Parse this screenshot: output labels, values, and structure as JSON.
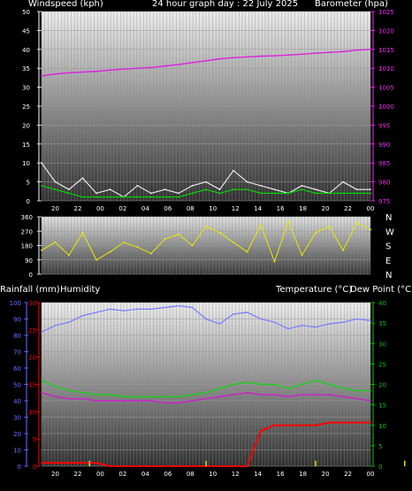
{
  "header": {
    "left": "Windspeed (kph)",
    "center": "24 hour graph day : 22 July 2025",
    "right": "Barometer (hpa)"
  },
  "lower_header": {
    "rain": "Rainfall (mm)",
    "humidity": "Humidity",
    "temp": "Temperature (°C)",
    "dew": "Dew Point (°C)"
  },
  "compass": [
    "N",
    "W",
    "S",
    "E",
    "N"
  ],
  "time_labels": [
    "20",
    "22",
    "00",
    "02",
    "04",
    "06",
    "08",
    "10",
    "12",
    "14",
    "16",
    "18",
    "20",
    "22",
    "00"
  ],
  "colors": {
    "wind_speed": "#f2f2f2",
    "wind_avg": "#00dd00",
    "barometer": "#dd22dd",
    "direction": "#e8e800",
    "humidity": "#7f7fff",
    "temperature": "#22cc22",
    "dewpoint": "#cc22cc",
    "rainfall": "#ff0000",
    "rain_rate": "#e0e000",
    "axis_red": "#ff0000",
    "axis_blue": "#6f6fff",
    "axis_green": "#00cc00",
    "axis_magenta": "#ff22ff"
  },
  "chart_data": [
    {
      "type": "line",
      "title": "24 hour graph day : 22 July 2025",
      "xlabel": "",
      "ylabel": "Windspeed (kph)",
      "y2label": "Barometer (hpa)",
      "x": [
        19,
        20,
        21,
        22,
        23,
        24,
        25,
        26,
        27,
        28,
        29,
        30,
        31,
        32,
        33,
        34,
        35,
        36,
        37,
        38,
        39,
        40,
        41,
        42,
        43
      ],
      "ylim": [
        0,
        50
      ],
      "y2lim": [
        975,
        1025
      ],
      "grid": true,
      "series": [
        {
          "name": "Windspeed (kph)",
          "axis": "left",
          "values": [
            10,
            5,
            3,
            6,
            2,
            3,
            1,
            4,
            2,
            3,
            2,
            4,
            5,
            3,
            8,
            5,
            4,
            3,
            2,
            4,
            3,
            2,
            5,
            3,
            3
          ]
        },
        {
          "name": "Average windspeed",
          "axis": "left",
          "values": [
            4,
            3,
            2,
            1,
            1,
            1,
            1,
            1,
            1,
            1,
            1,
            2,
            3,
            2,
            3,
            3,
            2,
            2,
            2,
            3,
            2,
            2,
            2,
            2,
            2
          ]
        },
        {
          "name": "Barometer (hpa)",
          "axis": "right",
          "values": [
            1008,
            1008.5,
            1008.8,
            1009,
            1009.2,
            1009.5,
            1009.8,
            1010,
            1010.2,
            1010.6,
            1011,
            1011.5,
            1012,
            1012.5,
            1012.8,
            1013,
            1013.2,
            1013.3,
            1013.5,
            1013.7,
            1014,
            1014.2,
            1014.4,
            1014.8,
            1015
          ]
        }
      ]
    },
    {
      "type": "scatter",
      "title": "",
      "ylabel": "",
      "x": [
        19,
        20,
        21,
        22,
        23,
        24,
        25,
        26,
        27,
        28,
        29,
        30,
        31,
        32,
        33,
        34,
        35,
        36,
        37,
        38,
        39,
        40,
        41,
        42,
        43
      ],
      "ylim": [
        0,
        360
      ],
      "ticks": [
        0,
        90,
        180,
        270,
        360
      ],
      "series": [
        {
          "name": "Wind direction",
          "values": [
            150,
            200,
            120,
            260,
            90,
            140,
            200,
            170,
            130,
            220,
            250,
            180,
            300,
            260,
            200,
            140,
            310,
            80,
            330,
            120,
            260,
            300,
            150,
            320,
            280
          ]
        }
      ]
    },
    {
      "type": "line",
      "title": "",
      "x": [
        19,
        20,
        21,
        22,
        23,
        24,
        25,
        26,
        27,
        28,
        29,
        30,
        31,
        32,
        33,
        34,
        35,
        36,
        37,
        38,
        39,
        40,
        41,
        42,
        43
      ],
      "axes": {
        "rainfall": {
          "label": "Rainfall (mm)",
          "range": [
            0,
            30
          ],
          "ticks": [
            0,
            5,
            10,
            15,
            20,
            25,
            30
          ]
        },
        "humidity": {
          "label": "Humidity",
          "range": [
            0,
            100
          ],
          "ticks": [
            0,
            10,
            20,
            30,
            40,
            50,
            60,
            70,
            80,
            90,
            100
          ]
        },
        "temperature": {
          "label": "Temperature (°C)",
          "range": [
            0,
            40
          ],
          "ticks": [
            0,
            5,
            10,
            15,
            20,
            25,
            30,
            35,
            40
          ]
        }
      },
      "grid": true,
      "series": [
        {
          "name": "Humidity",
          "axis": "humidity",
          "values": [
            82,
            86,
            88,
            92,
            94,
            96,
            95,
            96,
            96,
            97,
            98,
            97,
            90,
            87,
            93,
            94,
            90,
            88,
            84,
            86,
            85,
            87,
            88,
            90,
            89
          ]
        },
        {
          "name": "Temperature (°C)",
          "axis": "temperature",
          "values": [
            21,
            19.5,
            18.5,
            18,
            17.5,
            17.5,
            17,
            17,
            17,
            17,
            17,
            17.5,
            18,
            19,
            20,
            20.5,
            20,
            20,
            19,
            20,
            21,
            20,
            19,
            18.5,
            18.5
          ]
        },
        {
          "name": "Dew Point (°C)",
          "axis": "temperature",
          "values": [
            18,
            17,
            16.5,
            16.5,
            16,
            16,
            16,
            16,
            16,
            15.5,
            15.5,
            16,
            16.5,
            17,
            17.5,
            18,
            17.5,
            17.5,
            17,
            17.5,
            17.5,
            17.5,
            17,
            16.5,
            16
          ]
        },
        {
          "name": "Rainfall (mm)",
          "axis": "rainfall",
          "values": [
            0.6,
            0.6,
            0.6,
            0.6,
            0.6,
            0,
            0,
            0,
            0,
            0,
            0,
            0,
            0,
            0,
            0,
            0,
            6.5,
            7.5,
            7.5,
            7.5,
            7.5,
            8,
            8,
            8,
            8
          ]
        },
        {
          "name": "Rain rate",
          "axis": "rainfall",
          "type": "bar",
          "x": [
            22.5,
            31,
            39,
            45.5
          ],
          "values": [
            1,
            1,
            1,
            1
          ]
        }
      ]
    }
  ]
}
